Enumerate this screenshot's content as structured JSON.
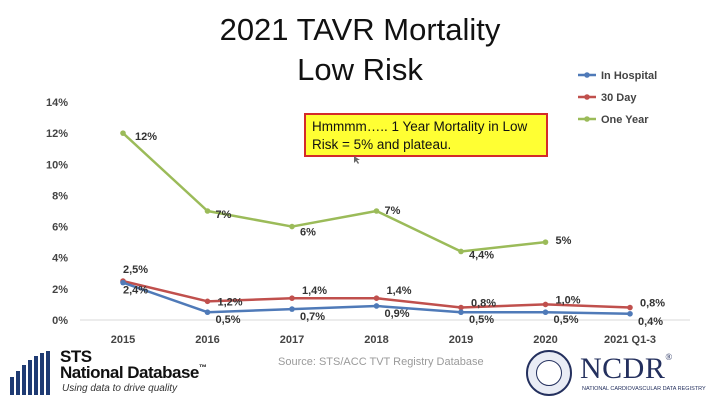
{
  "chart_data": {
    "type": "line",
    "title": "2021 TAVR Mortality",
    "subtitle": "Low Risk",
    "categories": [
      "2015",
      "2016",
      "2017",
      "2018",
      "2019",
      "2020",
      "2021 Q1-3"
    ],
    "ylim": [
      0,
      14
    ],
    "yticks": [
      0,
      2,
      4,
      6,
      8,
      10,
      12,
      14
    ],
    "ytick_labels": [
      "0%",
      "2%",
      "4%",
      "6%",
      "8%",
      "10%",
      "12%",
      "14%"
    ],
    "series": [
      {
        "name": "In Hospital",
        "color": "#4f7ab8",
        "values": [
          2.4,
          0.5,
          0.7,
          0.9,
          0.5,
          0.5,
          0.4
        ],
        "labels": [
          "2,4%",
          "0,5%",
          "0,7%",
          "0,9%",
          "0,5%",
          "0,5%",
          "0,4%"
        ]
      },
      {
        "name": "30 Day",
        "color": "#c0504d",
        "values": [
          2.5,
          1.2,
          1.4,
          1.4,
          0.8,
          1.0,
          0.8
        ],
        "labels": [
          "2,5%",
          "1,2%",
          "1,4%",
          "1,4%",
          "0,8%",
          "1,0%",
          "0,8%"
        ]
      },
      {
        "name": "One Year",
        "color": "#9bbb59",
        "values": [
          12,
          7,
          6,
          7,
          4.4,
          5,
          null
        ],
        "labels": [
          "12%",
          "7%",
          "6%",
          "7%",
          "4,4%",
          "5%",
          ""
        ]
      }
    ],
    "legend_position": "top-right",
    "annotation": "Hmmmm….. 1 Year Mortality in Low Risk = 5% and plateau."
  },
  "source": "Source:  STS/ACC TVT Registry Database",
  "logos": {
    "sts_line1": "STS",
    "sts_line2": "National Database",
    "sts_tm": "™",
    "sts_tagline": "Using data to drive quality",
    "ncdr_name": "NCDR",
    "ncdr_tm": "®",
    "ncdr_sub": "NATIONAL CARDIOVASCULAR DATA REGISTRY"
  }
}
